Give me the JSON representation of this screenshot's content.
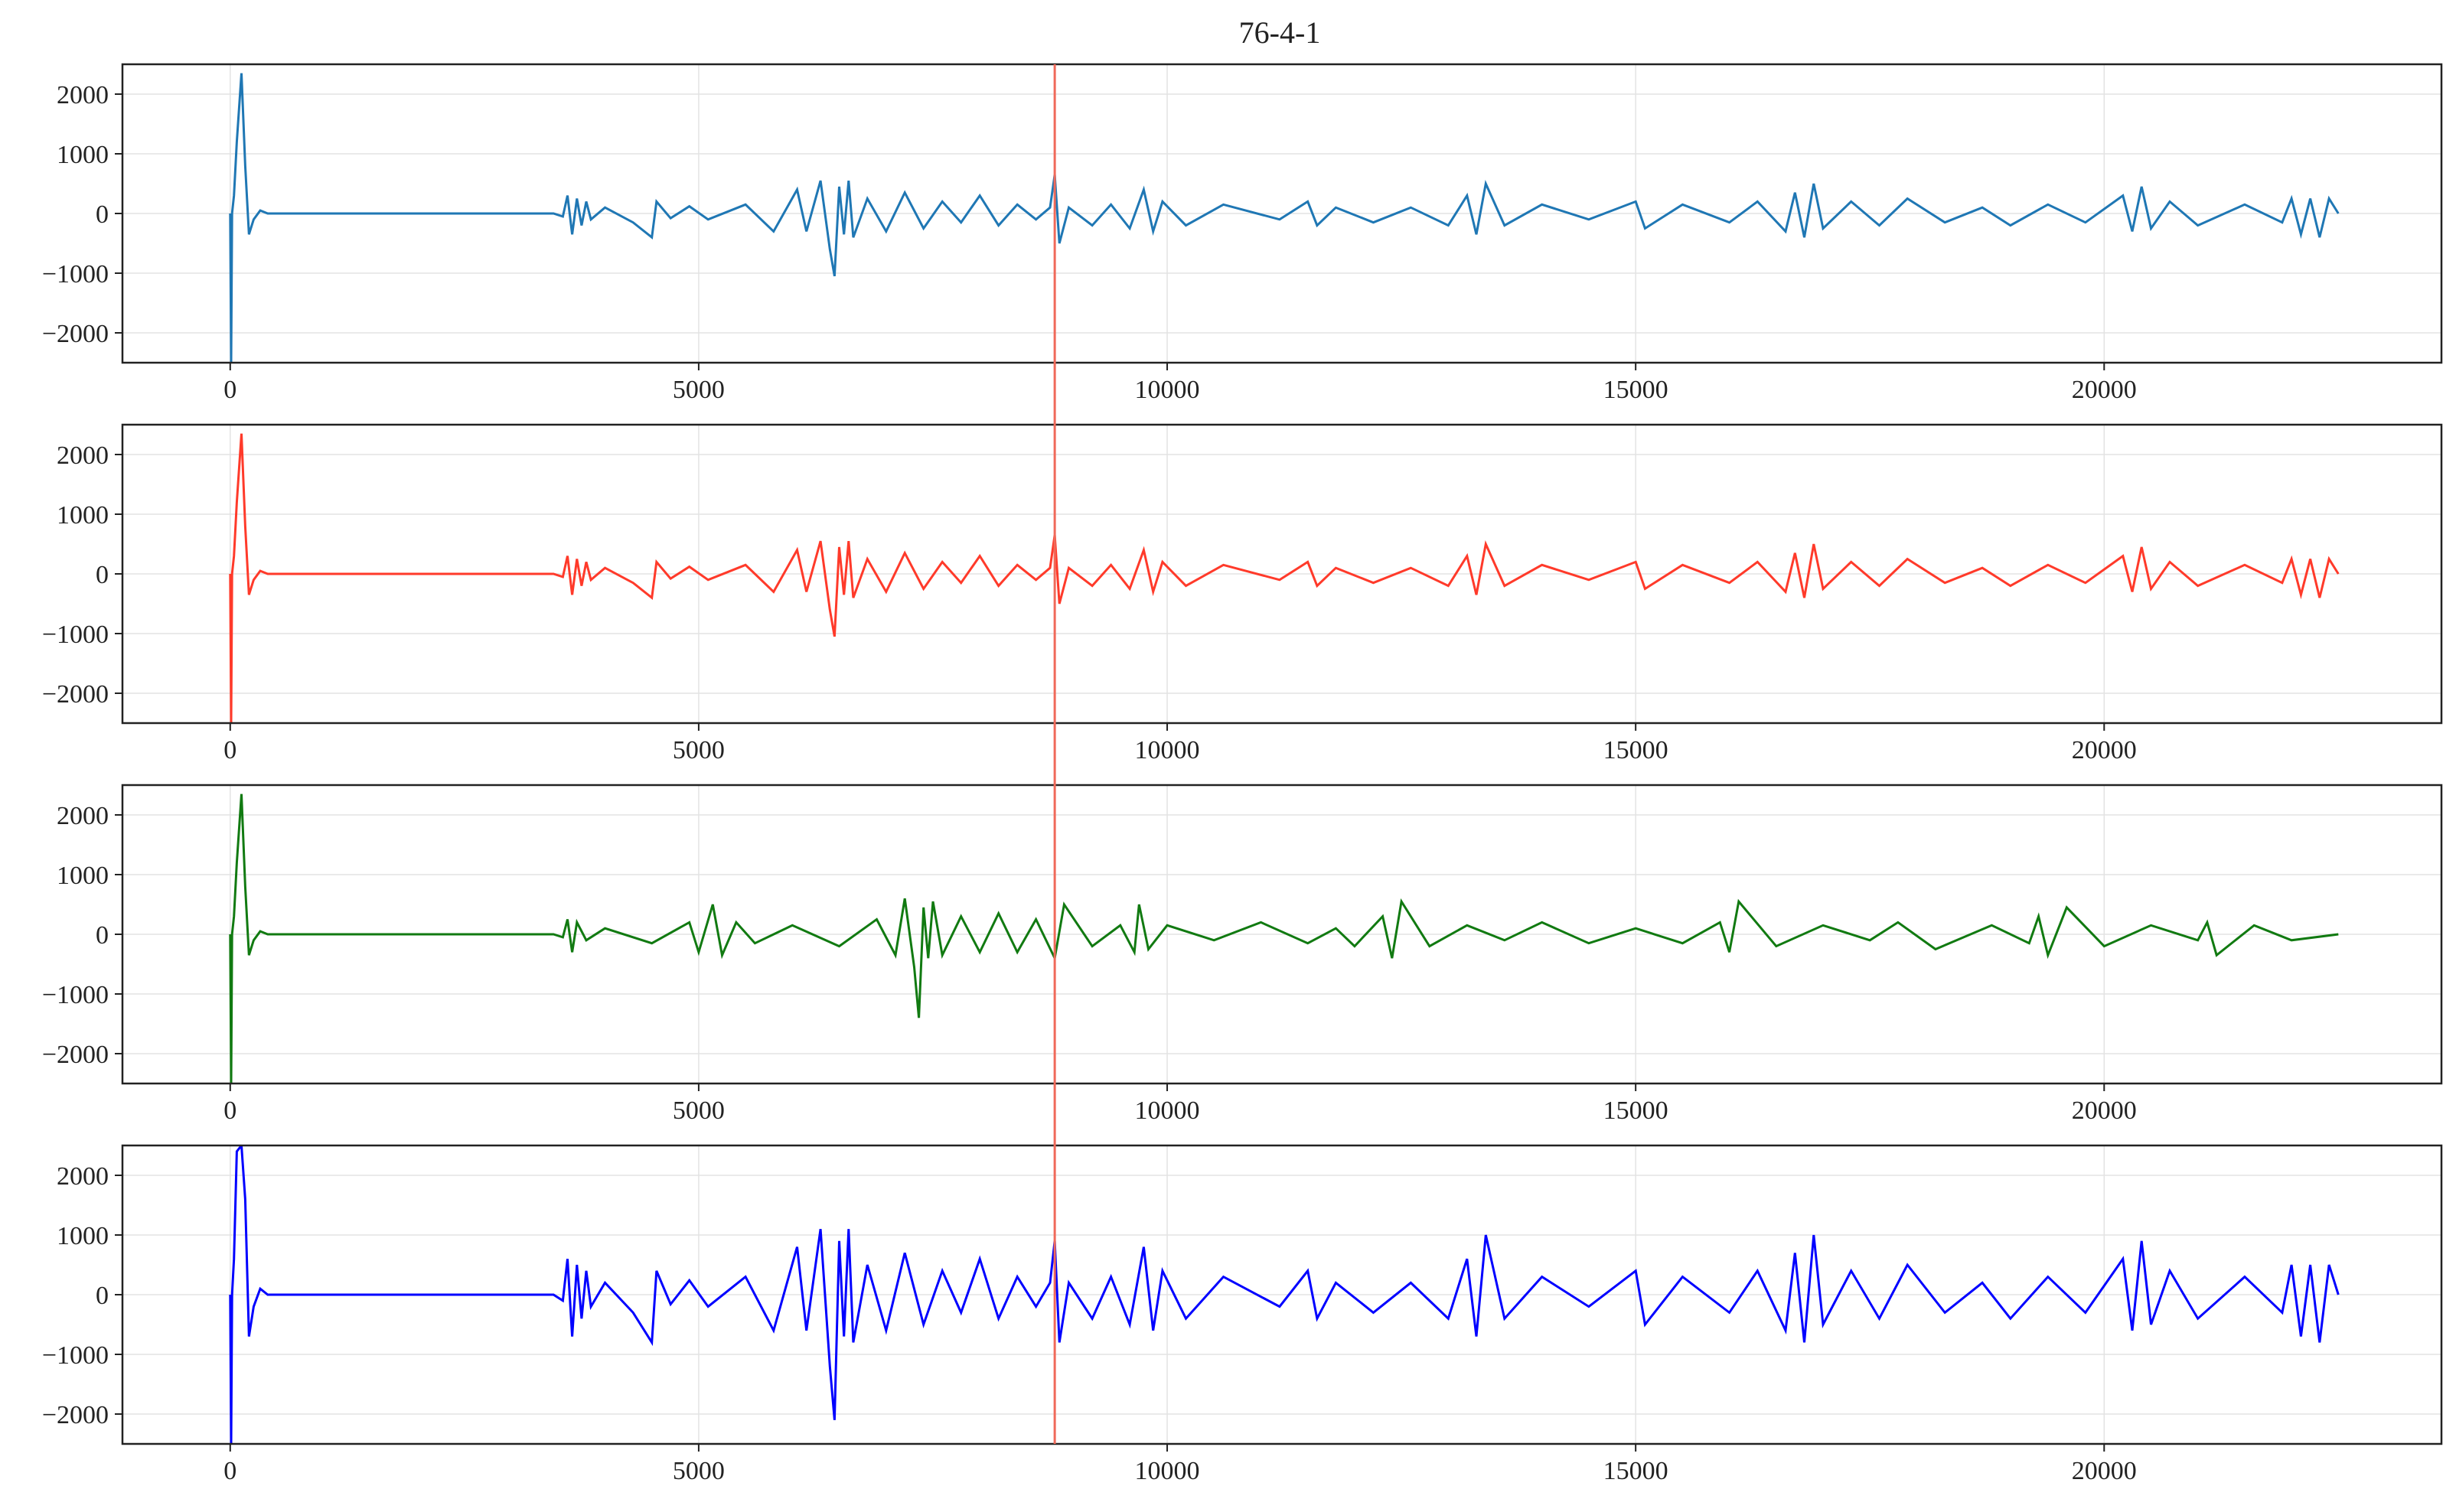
{
  "chart_data": {
    "type": "line",
    "title": "76-4-1",
    "grid": true,
    "xlim": [
      -1150,
      23600
    ],
    "ylim": [
      -2500,
      2500
    ],
    "xticks": [
      0,
      5000,
      10000,
      15000,
      20000
    ],
    "yticks": [
      2000,
      1000,
      0,
      -1000,
      -2000
    ],
    "vline_x": 8800,
    "subplots": [
      {
        "color": "#1f77b4",
        "series": {
          "x": [
            0,
            10,
            20,
            40,
            70,
            120,
            160,
            200,
            250,
            320,
            400,
            3450,
            3550,
            3600,
            3650,
            3700,
            3750,
            3800,
            3850,
            4000,
            4300,
            4500,
            4550,
            4700,
            4900,
            5100,
            5500,
            5800,
            6050,
            6150,
            6300,
            6400,
            6450,
            6500,
            6550,
            6600,
            6650,
            6800,
            7000,
            7200,
            7400,
            7600,
            7800,
            8000,
            8200,
            8400,
            8600,
            8750,
            8800,
            8850,
            8950,
            9200,
            9400,
            9600,
            9750,
            9850,
            9950,
            10200,
            10600,
            11200,
            11500,
            11600,
            11800,
            12200,
            12600,
            13000,
            13200,
            13300,
            13400,
            13600,
            14000,
            14500,
            15000,
            15100,
            15500,
            16000,
            16300,
            16600,
            16700,
            16800,
            16900,
            17000,
            17300,
            17600,
            17900,
            18300,
            18700,
            19000,
            19400,
            19800,
            20200,
            20300,
            20400,
            20500,
            20700,
            21000,
            21500,
            21900,
            22000,
            22100,
            22200,
            22300,
            22400,
            22500
          ],
          "y": [
            0,
            -2500,
            0,
            300,
            1200,
            2350,
            800,
            -350,
            -100,
            50,
            0,
            0,
            -50,
            300,
            -350,
            250,
            -200,
            200,
            -100,
            100,
            -150,
            -400,
            200,
            -80,
            120,
            -100,
            150,
            -300,
            400,
            -300,
            550,
            -600,
            -1050,
            450,
            -350,
            550,
            -400,
            250,
            -300,
            350,
            -250,
            200,
            -150,
            300,
            -200,
            150,
            -100,
            100,
            650,
            -500,
            100,
            -200,
            150,
            -250,
            400,
            -300,
            200,
            -200,
            150,
            -100,
            200,
            -200,
            100,
            -150,
            100,
            -200,
            300,
            -350,
            500,
            -200,
            150,
            -100,
            200,
            -250,
            150,
            -150,
            200,
            -300,
            350,
            -400,
            500,
            -250,
            200,
            -200,
            250,
            -150,
            100,
            -200,
            150,
            -150,
            300,
            -300,
            450,
            -250,
            200,
            -200,
            150,
            -150,
            250,
            -350,
            250,
            -400,
            250,
            0
          ]
        }
      },
      {
        "color": "#ff3a2a",
        "series": {
          "x": [
            0,
            10,
            20,
            40,
            70,
            120,
            160,
            200,
            250,
            320,
            400,
            3450,
            3550,
            3600,
            3650,
            3700,
            3750,
            3800,
            3850,
            4000,
            4300,
            4500,
            4550,
            4700,
            4900,
            5100,
            5500,
            5800,
            6050,
            6150,
            6300,
            6400,
            6450,
            6500,
            6550,
            6600,
            6650,
            6800,
            7000,
            7200,
            7400,
            7600,
            7800,
            8000,
            8200,
            8400,
            8600,
            8750,
            8800,
            8850,
            8950,
            9200,
            9400,
            9600,
            9750,
            9850,
            9950,
            10200,
            10600,
            11200,
            11500,
            11600,
            11800,
            12200,
            12600,
            13000,
            13200,
            13300,
            13400,
            13600,
            14000,
            14500,
            15000,
            15100,
            15500,
            16000,
            16300,
            16600,
            16700,
            16800,
            16900,
            17000,
            17300,
            17600,
            17900,
            18300,
            18700,
            19000,
            19400,
            19800,
            20200,
            20300,
            20400,
            20500,
            20700,
            21000,
            21500,
            21900,
            22000,
            22100,
            22200,
            22300,
            22400,
            22500
          ],
          "y": [
            0,
            -2500,
            0,
            300,
            1200,
            2350,
            800,
            -350,
            -100,
            50,
            0,
            0,
            -50,
            300,
            -350,
            250,
            -200,
            200,
            -100,
            100,
            -150,
            -400,
            200,
            -80,
            120,
            -100,
            150,
            -300,
            400,
            -300,
            550,
            -600,
            -1050,
            450,
            -350,
            550,
            -400,
            250,
            -300,
            350,
            -250,
            200,
            -150,
            300,
            -200,
            150,
            -100,
            100,
            650,
            -500,
            100,
            -200,
            150,
            -250,
            400,
            -300,
            200,
            -200,
            150,
            -100,
            200,
            -200,
            100,
            -150,
            100,
            -200,
            300,
            -350,
            500,
            -200,
            150,
            -100,
            200,
            -250,
            150,
            -150,
            200,
            -300,
            350,
            -400,
            500,
            -250,
            200,
            -200,
            250,
            -150,
            100,
            -200,
            150,
            -150,
            300,
            -300,
            450,
            -250,
            200,
            -200,
            150,
            -150,
            250,
            -350,
            250,
            -400,
            250,
            0
          ]
        }
      },
      {
        "color": "#117a11",
        "series": {
          "x": [
            0,
            10,
            20,
            40,
            70,
            120,
            160,
            200,
            250,
            320,
            400,
            3450,
            3550,
            3600,
            3650,
            3700,
            3800,
            4000,
            4500,
            4900,
            5000,
            5150,
            5250,
            5400,
            5600,
            6000,
            6500,
            6900,
            7100,
            7200,
            7300,
            7350,
            7400,
            7450,
            7500,
            7600,
            7800,
            8000,
            8200,
            8400,
            8600,
            8800,
            8900,
            9200,
            9500,
            9650,
            9700,
            9800,
            10000,
            10500,
            11000,
            11500,
            11800,
            12000,
            12300,
            12400,
            12500,
            12800,
            13200,
            13600,
            14000,
            14500,
            15000,
            15500,
            15900,
            16000,
            16100,
            16500,
            17000,
            17500,
            17800,
            18200,
            18800,
            19200,
            19300,
            19400,
            19600,
            20000,
            20500,
            21000,
            21100,
            21200,
            21600,
            22000,
            22500
          ],
          "y": [
            0,
            -2500,
            0,
            300,
            1200,
            2350,
            800,
            -350,
            -100,
            50,
            0,
            0,
            -50,
            250,
            -300,
            200,
            -100,
            100,
            -150,
            200,
            -300,
            500,
            -350,
            200,
            -150,
            150,
            -200,
            250,
            -350,
            600,
            -550,
            -1400,
            450,
            -400,
            550,
            -350,
            300,
            -300,
            350,
            -300,
            250,
            -400,
            500,
            -200,
            150,
            -300,
            500,
            -250,
            150,
            -100,
            200,
            -150,
            100,
            -200,
            300,
            -400,
            550,
            -200,
            150,
            -100,
            200,
            -150,
            100,
            -150,
            200,
            -300,
            550,
            -200,
            150,
            -100,
            200,
            -250,
            150,
            -150,
            300,
            -350,
            450,
            -200,
            150,
            -100,
            200,
            -350,
            150,
            -100,
            0
          ]
        }
      },
      {
        "color": "#0000ff",
        "series": {
          "x": [
            0,
            10,
            20,
            40,
            70,
            120,
            160,
            200,
            250,
            320,
            400,
            3450,
            3550,
            3600,
            3650,
            3700,
            3750,
            3800,
            3850,
            4000,
            4300,
            4500,
            4550,
            4700,
            4900,
            5100,
            5500,
            5800,
            6050,
            6150,
            6300,
            6400,
            6450,
            6500,
            6550,
            6600,
            6650,
            6800,
            7000,
            7200,
            7400,
            7600,
            7800,
            8000,
            8200,
            8400,
            8600,
            8750,
            8800,
            8850,
            8950,
            9200,
            9400,
            9600,
            9750,
            9850,
            9950,
            10200,
            10600,
            11200,
            11500,
            11600,
            11800,
            12200,
            12600,
            13000,
            13200,
            13300,
            13400,
            13600,
            14000,
            14500,
            15000,
            15100,
            15500,
            16000,
            16300,
            16600,
            16700,
            16800,
            16900,
            17000,
            17300,
            17600,
            17900,
            18300,
            18700,
            19000,
            19400,
            19800,
            20200,
            20300,
            20400,
            20500,
            20700,
            21000,
            21500,
            21900,
            22000,
            22100,
            22200,
            22300,
            22400,
            22500
          ],
          "y": [
            0,
            -2500,
            0,
            600,
            2400,
            2500,
            1600,
            -700,
            -200,
            100,
            0,
            0,
            -100,
            600,
            -700,
            500,
            -400,
            400,
            -200,
            200,
            -300,
            -800,
            400,
            -160,
            240,
            -200,
            300,
            -600,
            800,
            -600,
            1100,
            -1200,
            -2100,
            900,
            -700,
            1100,
            -800,
            500,
            -600,
            700,
            -500,
            400,
            -300,
            600,
            -400,
            300,
            -200,
            200,
            900,
            -800,
            200,
            -400,
            300,
            -500,
            800,
            -600,
            400,
            -400,
            300,
            -200,
            400,
            -400,
            200,
            -300,
            200,
            -400,
            600,
            -700,
            1000,
            -400,
            300,
            -200,
            400,
            -500,
            300,
            -300,
            400,
            -600,
            700,
            -800,
            1000,
            -500,
            400,
            -400,
            500,
            -300,
            200,
            -400,
            300,
            -300,
            600,
            -600,
            900,
            -500,
            400,
            -400,
            300,
            -300,
            500,
            -700,
            500,
            -800,
            500,
            0
          ]
        }
      }
    ]
  }
}
